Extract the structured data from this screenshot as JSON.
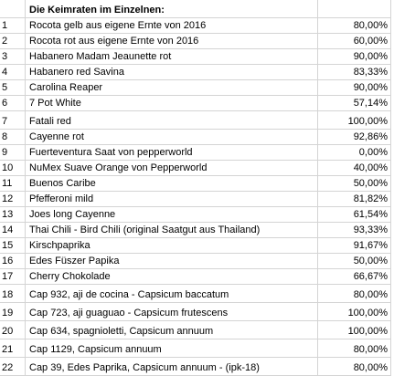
{
  "header": {
    "title": "Die Keimraten im Einzelnen:"
  },
  "rows": [
    {
      "num": "1",
      "name": "Rocota gelb aus eigene Ernte von 2016",
      "rate": "80,00%"
    },
    {
      "num": "2",
      "name": "Rocota rot aus eigene Ernte von 2016",
      "rate": "60,00%"
    },
    {
      "num": "3",
      "name": "Habanero Madam Jeaunette rot",
      "rate": "90,00%"
    },
    {
      "num": "4",
      "name": "Habanero red Savina",
      "rate": "83,33%"
    },
    {
      "num": "5",
      "name": "Carolina Reaper",
      "rate": "90,00%"
    },
    {
      "num": "6",
      "name": "7 Pot White",
      "rate": "57,14%"
    },
    {
      "num": "7",
      "name": "Fatali red",
      "rate": "100,00%"
    },
    {
      "num": "8",
      "name": "Cayenne rot",
      "rate": "92,86%"
    },
    {
      "num": "9",
      "name": "Fuerteventura Saat von pepperworld",
      "rate": "0,00%"
    },
    {
      "num": "10",
      "name": "NuMex Suave Orange von Pepperworld",
      "rate": "40,00%"
    },
    {
      "num": "11",
      "name": "Buenos Caribe",
      "rate": "50,00%"
    },
    {
      "num": "12",
      "name": "Pfefferoni mild",
      "rate": "81,82%"
    },
    {
      "num": "13",
      "name": "Joes long Cayenne",
      "rate": "61,54%"
    },
    {
      "num": "14",
      "name": "Thai Chili - Bird Chili (original Saatgut aus Thailand)",
      "rate": "93,33%"
    },
    {
      "num": "15",
      "name": "Kirschpaprika",
      "rate": "91,67%"
    },
    {
      "num": "16",
      "name": "Edes Füszer Papika",
      "rate": "50,00%"
    },
    {
      "num": "17",
      "name": "Cherry Chokolade",
      "rate": "66,67%"
    },
    {
      "num": "18",
      "name": "Cap 932, aji de cocina - Capsicum baccatum",
      "rate": "80,00%"
    },
    {
      "num": "19",
      "name": "Cap 723, aji guaguao - Capsicum frutescens",
      "rate": "100,00%"
    },
    {
      "num": "20",
      "name": "Cap 634, spagnioletti, Capsicum annuum",
      "rate": "100,00%"
    },
    {
      "num": "21",
      "name": "Cap 1129, Capsicum annuum",
      "rate": "80,00%"
    },
    {
      "num": "22",
      "name": "Cap 39, Edes Paprika, Capsicum annuum - (ipk-18)",
      "rate": "80,00%"
    }
  ]
}
